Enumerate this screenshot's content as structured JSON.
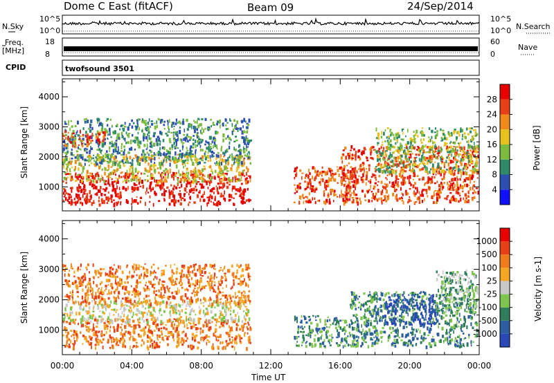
{
  "header": {
    "radar": "Dome C East (fitACF)",
    "beam": "Beam 09",
    "date": "24/Sep/2014"
  },
  "top_panels": {
    "nsky_label": "N.Sky",
    "nsky_ticks": [
      "10^5",
      "10^0"
    ],
    "nsearch_label": "N.Search",
    "nsearch_ticks": [
      "10^5",
      "10^0"
    ],
    "freq_label": "Freq.",
    "freq_unit": "[MHz]",
    "freq_ticks": [
      "18",
      "8"
    ],
    "nave_label": "Nave",
    "nave_ticks": [
      "60",
      "0"
    ],
    "cpid_label": "CPID",
    "cpid_value": "twofsound 3501"
  },
  "chart_data": [
    {
      "type": "heatmap",
      "title": "",
      "xlabel": "Time UT",
      "ylabel": "Slant Range [km]",
      "x_range_hours": [
        0,
        24
      ],
      "x_ticks": [
        "00:00",
        "04:00",
        "08:00",
        "12:00",
        "16:00",
        "20:00",
        "00:00"
      ],
      "y_range_km": [
        200,
        4600
      ],
      "y_ticks": [
        1000,
        2000,
        3000,
        4000
      ],
      "colorbar": {
        "label": "Power [dB]",
        "ticks": [
          "4",
          "8",
          "12",
          "16",
          "20",
          "24",
          "28"
        ],
        "colors": [
          "#1010ff",
          "#2d4fb0",
          "#2f8a6a",
          "#7dbb3f",
          "#e6c21f",
          "#f08a1a",
          "#e84016",
          "#e80000"
        ]
      },
      "regions": [
        {
          "t0": 0.0,
          "t1": 10.8,
          "r0": 450,
          "r1": 1500,
          "level": 7
        },
        {
          "t0": 0.0,
          "t1": 10.8,
          "r0": 1200,
          "r1": 2100,
          "level": 4
        },
        {
          "t0": 0.0,
          "t1": 10.8,
          "r0": 1800,
          "r1": 3300,
          "level": 2
        },
        {
          "t0": 0.0,
          "t1": 2.5,
          "r0": 2400,
          "r1": 2900,
          "level": 6
        },
        {
          "t0": 13.3,
          "t1": 17.0,
          "r0": 500,
          "r1": 1700,
          "level": 6
        },
        {
          "t0": 16.0,
          "t1": 23.9,
          "r0": 500,
          "r1": 2400,
          "level": 6
        },
        {
          "t0": 18.0,
          "t1": 23.9,
          "r0": 1500,
          "r1": 3000,
          "level": 3
        }
      ]
    },
    {
      "type": "heatmap",
      "title": "",
      "xlabel": "Time UT",
      "ylabel": "Slant Range [km]",
      "x_range_hours": [
        0,
        24
      ],
      "x_ticks": [
        "00:00",
        "04:00",
        "08:00",
        "12:00",
        "16:00",
        "20:00",
        "00:00"
      ],
      "y_range_km": [
        200,
        4600
      ],
      "y_ticks": [
        1000,
        2000,
        3000,
        4000
      ],
      "colorbar": {
        "label": "Velocity [m s-1]",
        "ticks": [
          "1000",
          "500",
          "100",
          "25",
          "-25",
          "-100",
          "-500",
          "-1000"
        ],
        "colors": [
          "#2a49b7",
          "#2d5fa0",
          "#2f7d5a",
          "#7fc44f",
          "#c8c8c8",
          "#f5a623",
          "#f07b1a",
          "#e84016",
          "#e80000"
        ]
      },
      "regions": [
        {
          "t0": 0.0,
          "t1": 10.8,
          "r0": 450,
          "r1": 1400,
          "level": 6
        },
        {
          "t0": 0.0,
          "t1": 10.8,
          "r0": 1300,
          "r1": 2000,
          "level": 4
        },
        {
          "t0": 0.0,
          "t1": 10.8,
          "r0": 1900,
          "r1": 3200,
          "level": 6
        },
        {
          "t0": 13.3,
          "t1": 17.0,
          "r0": 500,
          "r1": 1500,
          "level": 2
        },
        {
          "t0": 16.5,
          "t1": 23.9,
          "r0": 500,
          "r1": 2300,
          "level": 2
        },
        {
          "t0": 18.5,
          "t1": 21.5,
          "r0": 1200,
          "r1": 2200,
          "level": 0
        },
        {
          "t0": 21.5,
          "t1": 23.9,
          "r0": 1600,
          "r1": 3000,
          "level": 3
        }
      ]
    }
  ]
}
